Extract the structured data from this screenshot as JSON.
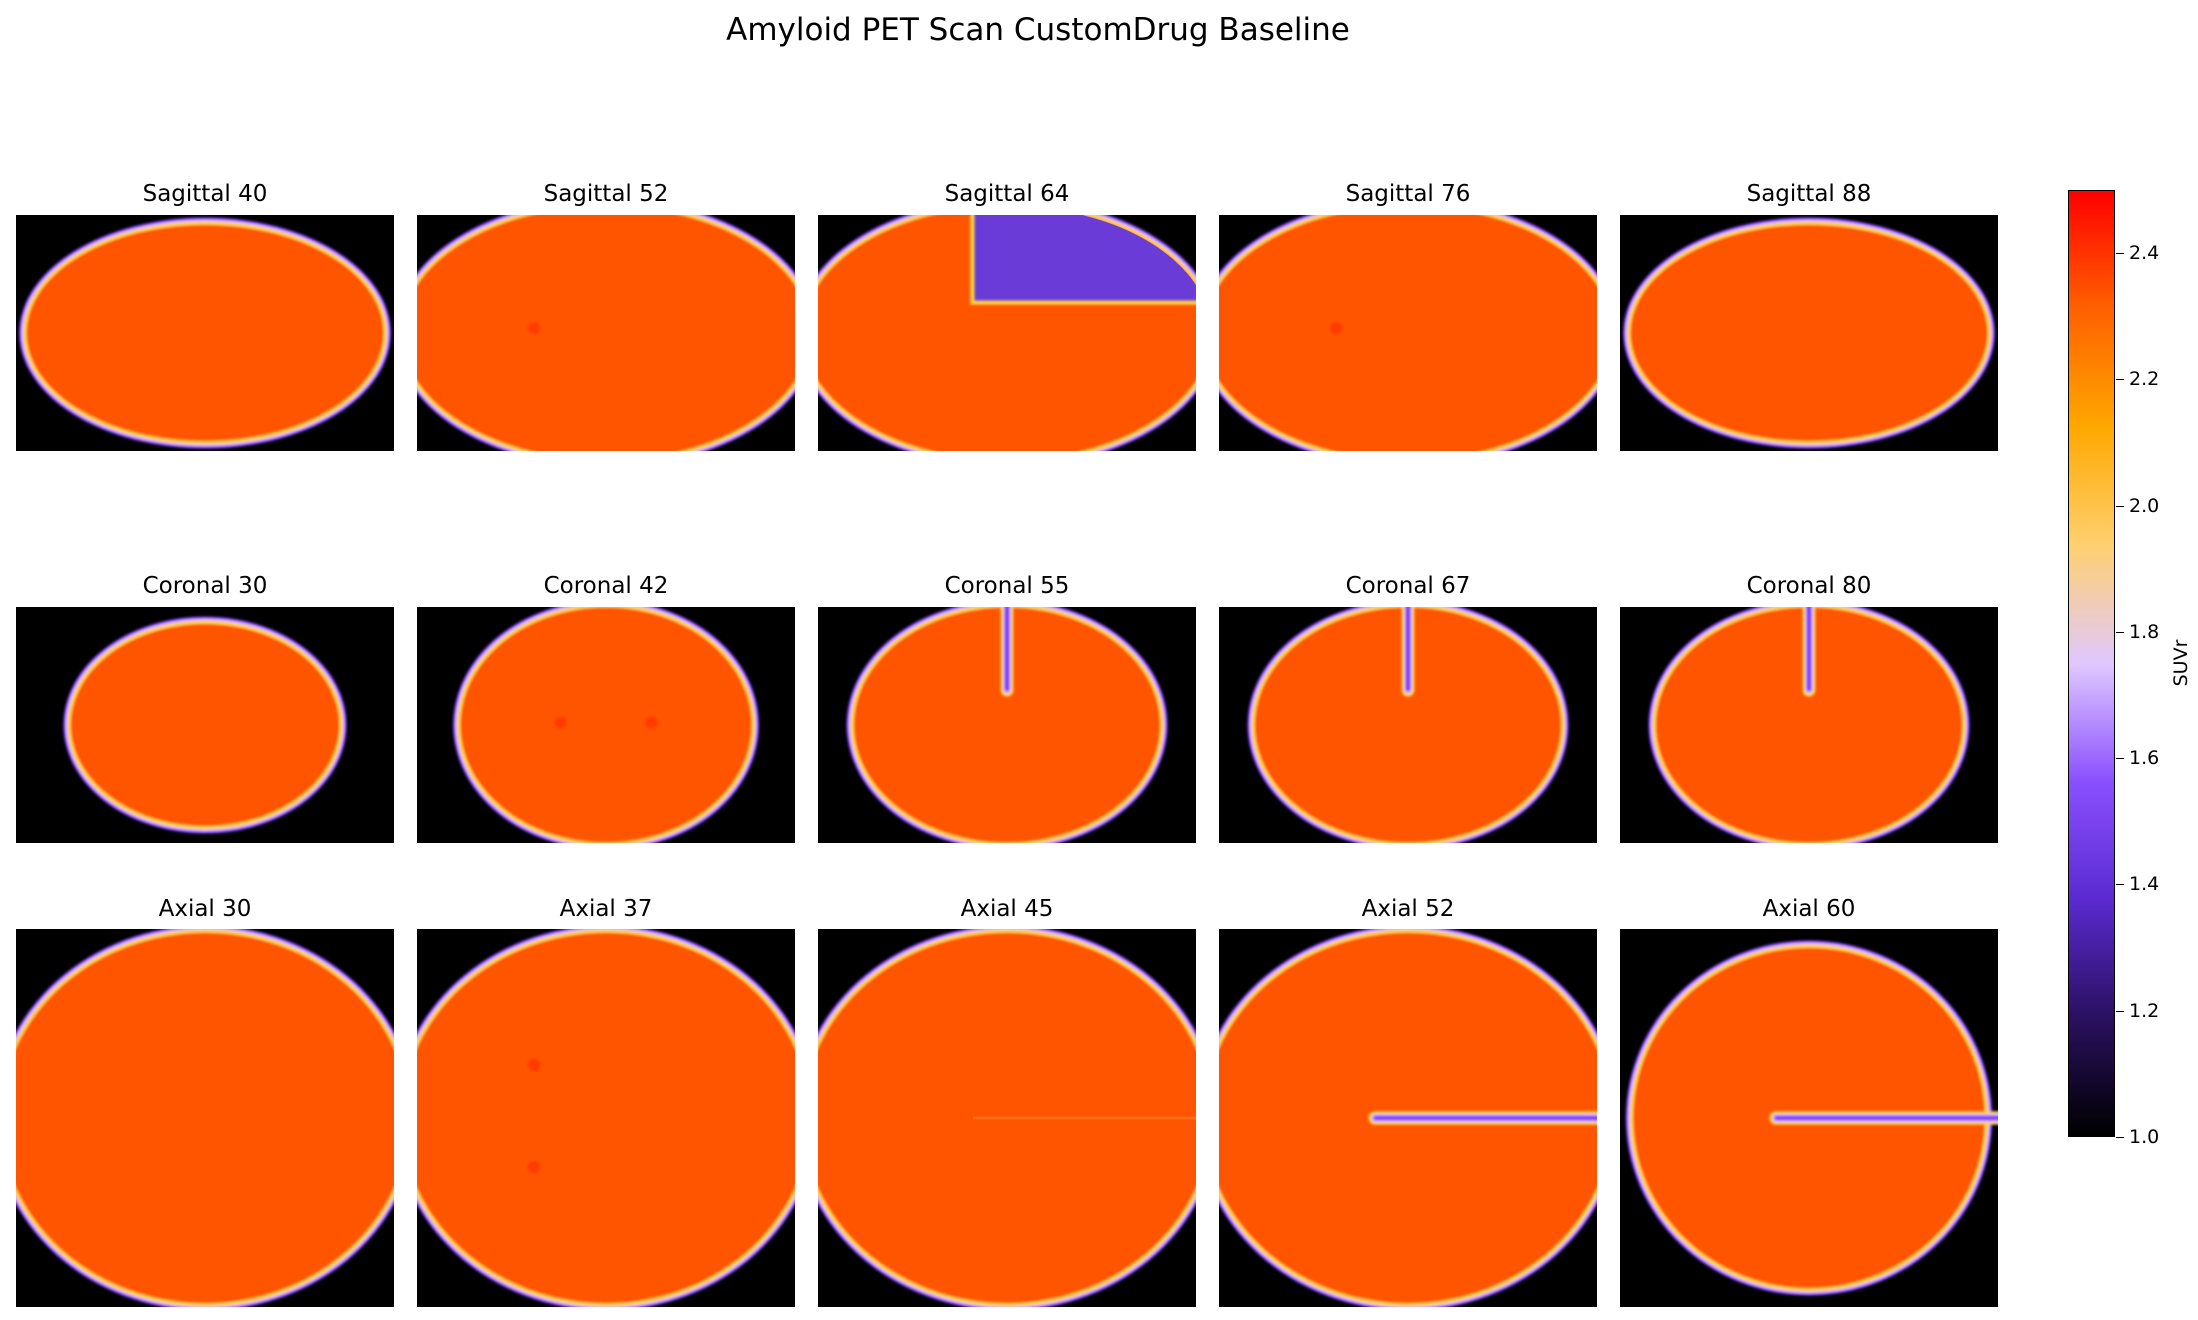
{
  "figure": {
    "title": "Amyloid PET Scan CustomDrug Baseline"
  },
  "colors": {
    "background": "#000000",
    "tissue": "#ff5500",
    "ring_outer": "#7d3cff",
    "ring_mid": "#e0b0ff",
    "ring_inner": "#ffd24a",
    "quadrant": "#6a3ad6",
    "hotspot": "#ff2a00"
  },
  "rows": [
    {
      "name": "sagittal",
      "panels": [
        {
          "title": "Sagittal 40",
          "shape": "full",
          "spots": []
        },
        {
          "title": "Sagittal 52",
          "shape": "wide",
          "spots": [
            [
              0.31,
              0.48
            ]
          ]
        },
        {
          "title": "Sagittal 64",
          "shape": "wide-quadrant",
          "spots": []
        },
        {
          "title": "Sagittal 76",
          "shape": "wide",
          "spots": [
            [
              0.31,
              0.48
            ]
          ]
        },
        {
          "title": "Sagittal 88",
          "shape": "full",
          "spots": []
        }
      ]
    },
    {
      "name": "coronal",
      "panels": [
        {
          "title": "Coronal 30",
          "shape": "small",
          "spots": []
        },
        {
          "title": "Coronal 42",
          "shape": "mid",
          "spots": [
            [
              0.38,
              0.49
            ],
            [
              0.62,
              0.49
            ]
          ]
        },
        {
          "title": "Coronal 55",
          "shape": "mid-slot",
          "spots": []
        },
        {
          "title": "Coronal 67",
          "shape": "mid-slot",
          "spots": []
        },
        {
          "title": "Coronal 80",
          "shape": "mid-slot",
          "spots": []
        }
      ]
    },
    {
      "name": "axial",
      "panels": [
        {
          "title": "Axial 30",
          "shape": "big",
          "spots": []
        },
        {
          "title": "Axial 37",
          "shape": "big",
          "spots": [
            [
              0.31,
              0.36
            ],
            [
              0.31,
              0.63
            ]
          ]
        },
        {
          "title": "Axial 45",
          "shape": "big-faint",
          "spots": []
        },
        {
          "title": "Axial 52",
          "shape": "big-slot",
          "spots": []
        },
        {
          "title": "Axial 60",
          "shape": "round-slot",
          "spots": []
        }
      ]
    }
  ],
  "colorbar": {
    "label": "SUVr",
    "min": 1.0,
    "max": 2.5,
    "colormap": "gnuplot-like",
    "stops": [
      "#000000",
      "#2a1060",
      "#5a2ad0",
      "#8a50ff",
      "#e0c8ff",
      "#ffd070",
      "#ffa800",
      "#ff6000",
      "#ff0000"
    ],
    "ticks": [
      "1.0",
      "1.2",
      "1.4",
      "1.6",
      "1.8",
      "2.0",
      "2.2",
      "2.4"
    ],
    "tick_values": [
      1.0,
      1.2,
      1.4,
      1.6,
      1.8,
      2.0,
      2.2,
      2.4
    ]
  }
}
